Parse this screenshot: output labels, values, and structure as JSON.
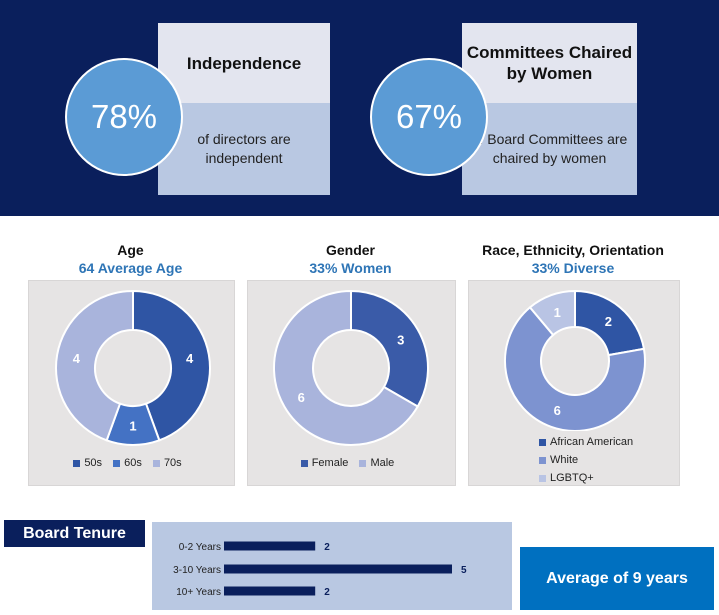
{
  "banner": {
    "independence": {
      "percent": "78%",
      "title": "Independence",
      "desc": "of directors are independent"
    },
    "committees": {
      "percent": "67%",
      "title": "Committees Chaired by Women",
      "desc": "of Board Committees are chaired by women"
    }
  },
  "chart_data": [
    {
      "type": "donut",
      "title": "Age",
      "subtitle": "64 Average Age",
      "categories": [
        "50s",
        "60s",
        "70s"
      ],
      "values": [
        4,
        1,
        4
      ],
      "colors": [
        "#2f55a4",
        "#4472c4",
        "#a9b4dc"
      ],
      "legend": "bottom"
    },
    {
      "type": "donut",
      "title": "Gender",
      "subtitle": "33% Women",
      "categories": [
        "Female",
        "Male"
      ],
      "values": [
        3,
        6
      ],
      "colors": [
        "#3a5ba8",
        "#a9b4dc"
      ],
      "legend": "bottom"
    },
    {
      "type": "donut",
      "title": "Race, Ethnicity, Orientation",
      "subtitle": "33% Diverse",
      "categories": [
        "African American",
        "White",
        "LGBTQ+"
      ],
      "values": [
        2,
        6,
        1
      ],
      "colors": [
        "#2f55a4",
        "#7d93d0",
        "#b9c4e4"
      ],
      "legend": "bottom"
    },
    {
      "type": "bar",
      "orientation": "horizontal",
      "title": "Board Tenure",
      "categories": [
        "0-2 Years",
        "3-10 Years",
        "10+ Years"
      ],
      "values": [
        2,
        5,
        2
      ],
      "xlim": [
        0,
        5
      ],
      "color": "#0a1f5c"
    }
  ],
  "tenure": {
    "label": "Board Tenure",
    "average": "Average of 9 years"
  }
}
